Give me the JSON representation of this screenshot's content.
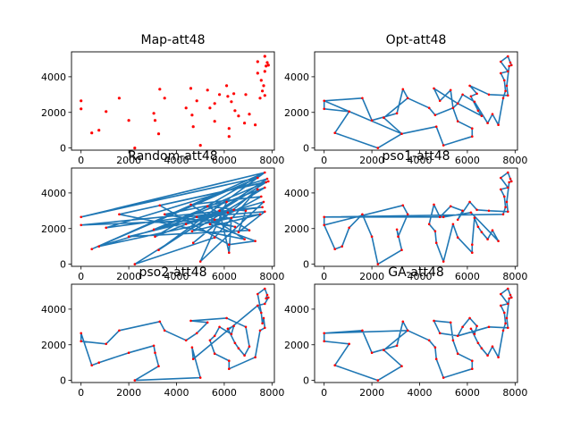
{
  "figure": {
    "background": "#ffffff",
    "route_color": "#1f77b4",
    "city_color": "#ff0000"
  },
  "chart_data": [
    {
      "type": "scatter",
      "title": "Map-att48",
      "xlim": [
        -400,
        8100
      ],
      "ylim": [
        -120,
        5400
      ],
      "xticks": [
        0,
        2000,
        4000,
        6000,
        8000
      ],
      "yticks": [
        0,
        2000,
        4000
      ],
      "points": [
        [
          0,
          2650
        ],
        [
          0,
          2200
        ],
        [
          450,
          850
        ],
        [
          750,
          1000
        ],
        [
          1050,
          2050
        ],
        [
          1600,
          2800
        ],
        [
          2000,
          1550
        ],
        [
          2250,
          0
        ],
        [
          3050,
          1950
        ],
        [
          3100,
          1550
        ],
        [
          3250,
          800
        ],
        [
          3300,
          3300
        ],
        [
          3500,
          2800
        ],
        [
          4400,
          2250
        ],
        [
          4600,
          3350
        ],
        [
          4650,
          1850
        ],
        [
          4700,
          1200
        ],
        [
          4850,
          2650
        ],
        [
          5000,
          150
        ],
        [
          5300,
          3250
        ],
        [
          5400,
          2250
        ],
        [
          5600,
          1500
        ],
        [
          5600,
          2500
        ],
        [
          5800,
          3000
        ],
        [
          6100,
          3500
        ],
        [
          6150,
          2900
        ],
        [
          6200,
          1100
        ],
        [
          6200,
          650
        ],
        [
          6300,
          2600
        ],
        [
          6400,
          3050
        ],
        [
          6450,
          2100
        ],
        [
          6600,
          1800
        ],
        [
          6850,
          1400
        ],
        [
          6900,
          3000
        ],
        [
          7050,
          1900
        ],
        [
          7300,
          1300
        ],
        [
          7400,
          4200
        ],
        [
          7400,
          4850
        ],
        [
          7500,
          2800
        ],
        [
          7550,
          3800
        ],
        [
          7600,
          3200
        ],
        [
          7650,
          3500
        ],
        [
          7700,
          5150
        ],
        [
          7700,
          4300
        ],
        [
          7750,
          4600
        ],
        [
          7800,
          4800
        ],
        [
          7850,
          4650
        ],
        [
          7700,
          2950
        ]
      ]
    },
    {
      "type": "line",
      "title": "Opt-att48",
      "xlim": [
        -400,
        8100
      ],
      "ylim": [
        -120,
        5400
      ],
      "xticks": [
        0,
        2000,
        4000,
        6000,
        8000
      ],
      "yticks": [
        0,
        2000,
        4000
      ],
      "points": [
        [
          0,
          2650
        ],
        [
          1600,
          2800
        ],
        [
          2000,
          1550
        ],
        [
          3050,
          1950
        ],
        [
          3300,
          3300
        ],
        [
          3500,
          2800
        ],
        [
          2500,
          1700
        ],
        [
          3250,
          800
        ],
        [
          2250,
          0
        ],
        [
          450,
          850
        ],
        [
          1050,
          2050
        ],
        [
          0,
          2200
        ],
        [
          0,
          2650
        ],
        [
          3250,
          800
        ],
        [
          4700,
          1200
        ],
        [
          5000,
          150
        ],
        [
          6200,
          650
        ],
        [
          6200,
          1100
        ],
        [
          5600,
          1500
        ],
        [
          5400,
          2250
        ],
        [
          5300,
          3250
        ],
        [
          4850,
          2650
        ],
        [
          4600,
          3350
        ],
        [
          5600,
          2500
        ],
        [
          5800,
          3000
        ],
        [
          6300,
          2600
        ],
        [
          6850,
          1400
        ],
        [
          7050,
          1900
        ],
        [
          7300,
          1300
        ],
        [
          7500,
          2800
        ],
        [
          7600,
          3200
        ],
        [
          7550,
          3800
        ],
        [
          7400,
          4200
        ],
        [
          7700,
          4300
        ],
        [
          7400,
          4850
        ],
        [
          7700,
          5150
        ],
        [
          7800,
          4800
        ],
        [
          7850,
          4650
        ],
        [
          7750,
          4600
        ],
        [
          7650,
          3500
        ],
        [
          7700,
          2950
        ],
        [
          6900,
          3000
        ],
        [
          6100,
          3500
        ],
        [
          6400,
          3050
        ],
        [
          6150,
          2900
        ],
        [
          6450,
          2100
        ],
        [
          6600,
          1800
        ],
        [
          5600,
          2500
        ],
        [
          5400,
          2250
        ],
        [
          4650,
          1850
        ],
        [
          4400,
          2250
        ],
        [
          3500,
          2800
        ]
      ]
    },
    {
      "type": "line",
      "title": "Random-att48",
      "xlim": [
        -400,
        8100
      ],
      "ylim": [
        -120,
        5400
      ],
      "xticks": [
        0,
        2000,
        4000,
        6000,
        8000
      ],
      "yticks": [
        0,
        2000,
        4000
      ],
      "points": [
        [
          0,
          2650
        ],
        [
          7400,
          4850
        ],
        [
          450,
          850
        ],
        [
          7700,
          5150
        ],
        [
          3250,
          800
        ],
        [
          7800,
          4800
        ],
        [
          1050,
          2050
        ],
        [
          7600,
          3200
        ],
        [
          0,
          2200
        ],
        [
          5600,
          2500
        ],
        [
          7500,
          2800
        ],
        [
          4650,
          1850
        ],
        [
          7700,
          4300
        ],
        [
          3050,
          1950
        ],
        [
          7850,
          4650
        ],
        [
          3300,
          3300
        ],
        [
          6200,
          1100
        ],
        [
          7300,
          1300
        ],
        [
          5400,
          2250
        ],
        [
          7550,
          3800
        ],
        [
          4600,
          3350
        ],
        [
          6850,
          1400
        ],
        [
          1600,
          2800
        ],
        [
          7750,
          4600
        ],
        [
          2250,
          0
        ],
        [
          5600,
          1500
        ],
        [
          7400,
          4200
        ],
        [
          4700,
          1200
        ],
        [
          6400,
          3050
        ],
        [
          4400,
          2250
        ],
        [
          7650,
          3500
        ],
        [
          5000,
          150
        ],
        [
          6100,
          3500
        ],
        [
          3500,
          2800
        ],
        [
          6450,
          2100
        ],
        [
          4850,
          2650
        ],
        [
          6150,
          2900
        ],
        [
          2000,
          1550
        ],
        [
          7050,
          1900
        ],
        [
          5300,
          3250
        ],
        [
          6900,
          3000
        ],
        [
          6600,
          1800
        ],
        [
          7700,
          2950
        ],
        [
          4850,
          2650
        ],
        [
          750,
          1000
        ],
        [
          6300,
          2600
        ],
        [
          6200,
          650
        ],
        [
          5800,
          3000
        ],
        [
          3100,
          1550
        ],
        [
          7700,
          5150
        ],
        [
          0,
          2650
        ]
      ]
    },
    {
      "type": "line",
      "title": "pso1-att48",
      "xlim": [
        -400,
        8100
      ],
      "ylim": [
        -120,
        5400
      ],
      "xticks": [
        0,
        2000,
        4000,
        6000,
        8000
      ],
      "yticks": [
        0,
        2000,
        4000
      ],
      "points": [
        [
          0,
          2650
        ],
        [
          7500,
          2800
        ],
        [
          7600,
          3200
        ],
        [
          7550,
          3800
        ],
        [
          7400,
          4200
        ],
        [
          7700,
          4300
        ],
        [
          7400,
          4850
        ],
        [
          7700,
          5150
        ],
        [
          7800,
          4800
        ],
        [
          7850,
          4650
        ],
        [
          7750,
          4600
        ],
        [
          7650,
          3500
        ],
        [
          7700,
          2950
        ],
        [
          6900,
          3000
        ],
        [
          6400,
          3050
        ],
        [
          6100,
          3500
        ],
        [
          5600,
          2500
        ],
        [
          5800,
          3000
        ],
        [
          5300,
          3250
        ],
        [
          4850,
          2650
        ],
        [
          4600,
          3350
        ],
        [
          4400,
          2250
        ],
        [
          4650,
          1850
        ],
        [
          4700,
          1200
        ],
        [
          5000,
          150
        ],
        [
          5400,
          2250
        ],
        [
          5600,
          1500
        ],
        [
          6200,
          650
        ],
        [
          6200,
          1100
        ],
        [
          6300,
          2600
        ],
        [
          6450,
          2100
        ],
        [
          6600,
          1800
        ],
        [
          6850,
          1400
        ],
        [
          7050,
          1900
        ],
        [
          7300,
          1300
        ],
        [
          6150,
          2900
        ],
        [
          5000,
          2650
        ],
        [
          0,
          2650
        ],
        [
          0,
          2200
        ],
        [
          450,
          850
        ],
        [
          750,
          1000
        ],
        [
          1050,
          2050
        ],
        [
          1600,
          2800
        ],
        [
          2000,
          1550
        ],
        [
          2250,
          0
        ],
        [
          3250,
          800
        ],
        [
          3050,
          1950
        ],
        [
          3100,
          1550
        ],
        [
          3500,
          2800
        ],
        [
          3300,
          3300
        ],
        [
          0,
          2200
        ]
      ]
    },
    {
      "type": "line",
      "title": "pso2-att48",
      "xlim": [
        -400,
        8100
      ],
      "ylim": [
        -120,
        5400
      ],
      "xticks": [
        0,
        2000,
        4000,
        6000,
        8000
      ],
      "yticks": [
        0,
        2000,
        4000
      ],
      "points": [
        [
          0,
          2650
        ],
        [
          0,
          2200
        ],
        [
          1050,
          2050
        ],
        [
          1600,
          2800
        ],
        [
          3300,
          3300
        ],
        [
          3500,
          2800
        ],
        [
          4400,
          2250
        ],
        [
          4850,
          2650
        ],
        [
          5300,
          3250
        ],
        [
          4600,
          3350
        ],
        [
          6100,
          3500
        ],
        [
          6900,
          3000
        ],
        [
          7050,
          1900
        ],
        [
          6850,
          1400
        ],
        [
          6600,
          1800
        ],
        [
          6450,
          2100
        ],
        [
          6150,
          2900
        ],
        [
          6400,
          3050
        ],
        [
          6300,
          2600
        ],
        [
          5800,
          3000
        ],
        [
          5600,
          2500
        ],
        [
          5400,
          2250
        ],
        [
          5600,
          1500
        ],
        [
          6200,
          1100
        ],
        [
          6200,
          650
        ],
        [
          7300,
          1300
        ],
        [
          7500,
          2800
        ],
        [
          7700,
          2950
        ],
        [
          7650,
          3500
        ],
        [
          7600,
          3200
        ],
        [
          7550,
          3800
        ],
        [
          7400,
          4200
        ],
        [
          7700,
          4300
        ],
        [
          7850,
          4650
        ],
        [
          7750,
          4600
        ],
        [
          7800,
          4800
        ],
        [
          7700,
          5150
        ],
        [
          7400,
          4850
        ],
        [
          7550,
          3800
        ],
        [
          7400,
          4200
        ],
        [
          4700,
          1200
        ],
        [
          4650,
          1850
        ],
        [
          5000,
          150
        ],
        [
          2250,
          0
        ],
        [
          3250,
          800
        ],
        [
          3100,
          1550
        ],
        [
          3050,
          1950
        ],
        [
          2000,
          1550
        ],
        [
          750,
          1000
        ],
        [
          450,
          850
        ],
        [
          0,
          2650
        ]
      ]
    },
    {
      "type": "line",
      "title": "GA-att48",
      "xlim": [
        -400,
        8100
      ],
      "ylim": [
        -120,
        5400
      ],
      "xticks": [
        0,
        2000,
        4000,
        6000,
        8000
      ],
      "yticks": [
        0,
        2000,
        4000
      ],
      "points": [
        [
          0,
          2650
        ],
        [
          1600,
          2800
        ],
        [
          2000,
          1550
        ],
        [
          3050,
          1950
        ],
        [
          3300,
          3300
        ],
        [
          3500,
          2800
        ],
        [
          2500,
          1700
        ],
        [
          3250,
          800
        ],
        [
          2250,
          0
        ],
        [
          450,
          850
        ],
        [
          1050,
          2050
        ],
        [
          0,
          2200
        ],
        [
          0,
          2650
        ],
        [
          3500,
          2800
        ],
        [
          4400,
          2250
        ],
        [
          4650,
          1850
        ],
        [
          4700,
          1200
        ],
        [
          5000,
          150
        ],
        [
          6200,
          650
        ],
        [
          6200,
          1100
        ],
        [
          5600,
          1500
        ],
        [
          5400,
          2250
        ],
        [
          5300,
          3250
        ],
        [
          4600,
          3350
        ],
        [
          4850,
          2650
        ],
        [
          5600,
          2500
        ],
        [
          5800,
          3000
        ],
        [
          6100,
          3500
        ],
        [
          6400,
          3050
        ],
        [
          6300,
          2600
        ],
        [
          6150,
          2900
        ],
        [
          6450,
          2100
        ],
        [
          6600,
          1800
        ],
        [
          6850,
          1400
        ],
        [
          7050,
          1900
        ],
        [
          7300,
          1300
        ],
        [
          7500,
          2800
        ],
        [
          7600,
          3200
        ],
        [
          7550,
          3800
        ],
        [
          7400,
          4200
        ],
        [
          7700,
          4300
        ],
        [
          7400,
          4850
        ],
        [
          7700,
          5150
        ],
        [
          7800,
          4800
        ],
        [
          7850,
          4650
        ],
        [
          7750,
          4600
        ],
        [
          7650,
          3500
        ],
        [
          7700,
          2950
        ],
        [
          6900,
          3000
        ],
        [
          5600,
          2500
        ]
      ]
    }
  ]
}
